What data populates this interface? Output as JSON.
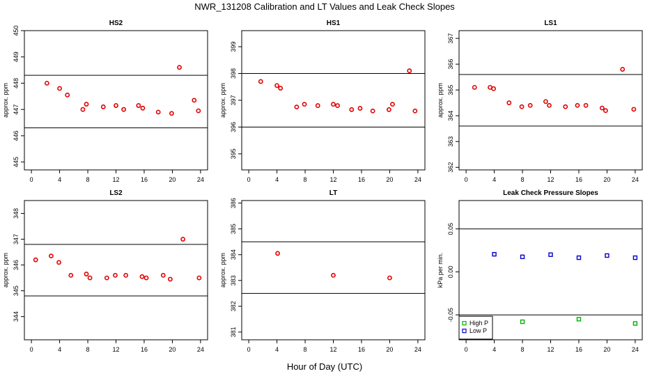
{
  "title": "NWR_131208  Calibration and LT Values and Leak Check Slopes",
  "xlabel": "Hour of Day (UTC)",
  "colors": {
    "point": "#e00000",
    "high_p": "#00b000",
    "low_p": "#0000cc",
    "axis": "#000000"
  },
  "chart_data": [
    {
      "type": "scatter",
      "title": "HS2",
      "ylabel": "approx. ppm",
      "xlim": [
        -1,
        25
      ],
      "xticks": [
        0,
        4,
        8,
        12,
        16,
        20,
        24
      ],
      "ylim": [
        444.7,
        450
      ],
      "yticks": [
        445,
        446,
        447,
        448,
        449,
        450
      ],
      "hlines": [
        448.3,
        446.3
      ],
      "series": [
        {
          "name": "HS2",
          "marker": "circle",
          "color": "#e00000",
          "x": [
            2.2,
            4.0,
            5.1,
            7.3,
            7.8,
            10.2,
            12.0,
            13.1,
            15.2,
            15.8,
            18.0,
            19.9,
            21.0,
            23.1,
            23.7
          ],
          "y": [
            448.0,
            447.8,
            447.55,
            447.0,
            447.2,
            447.1,
            447.15,
            447.0,
            447.15,
            447.05,
            446.9,
            446.85,
            448.6,
            447.35,
            446.95
          ]
        }
      ]
    },
    {
      "type": "scatter",
      "title": "HS1",
      "ylabel": "approx. ppm",
      "xlim": [
        -1,
        25
      ],
      "xticks": [
        0,
        4,
        8,
        12,
        16,
        20,
        24
      ],
      "ylim": [
        394.4,
        399.6
      ],
      "yticks": [
        395,
        396,
        397,
        398,
        399
      ],
      "hlines": [
        398.0,
        396.0
      ],
      "series": [
        {
          "name": "HS1",
          "marker": "circle",
          "color": "#e00000",
          "x": [
            1.7,
            4.0,
            4.5,
            6.8,
            7.9,
            9.8,
            12.0,
            12.6,
            14.6,
            15.8,
            17.6,
            19.9,
            20.4,
            22.8,
            23.6
          ],
          "y": [
            397.7,
            397.55,
            397.45,
            396.75,
            396.85,
            396.8,
            396.85,
            396.8,
            396.65,
            396.7,
            396.6,
            396.65,
            396.85,
            398.1,
            396.6
          ]
        }
      ]
    },
    {
      "type": "scatter",
      "title": "LS1",
      "ylabel": "approx. ppm",
      "xlim": [
        -1,
        25
      ],
      "xticks": [
        0,
        4,
        8,
        12,
        16,
        20,
        24
      ],
      "ylim": [
        361.9,
        367.3
      ],
      "yticks": [
        362,
        363,
        364,
        365,
        366,
        367
      ],
      "hlines": [
        365.6,
        363.6
      ],
      "series": [
        {
          "name": "LS1",
          "marker": "circle",
          "color": "#e00000",
          "x": [
            1.2,
            3.4,
            3.9,
            6.1,
            7.9,
            9.1,
            11.3,
            11.8,
            14.1,
            15.8,
            17.0,
            19.3,
            19.8,
            22.2,
            23.8
          ],
          "y": [
            365.1,
            365.1,
            365.05,
            364.5,
            364.35,
            364.4,
            364.55,
            364.4,
            364.35,
            364.4,
            364.4,
            364.3,
            364.2,
            365.8,
            364.25
          ]
        }
      ]
    },
    {
      "type": "scatter",
      "title": "LS2",
      "ylabel": "approx. ppm",
      "xlim": [
        -1,
        25
      ],
      "xticks": [
        0,
        4,
        8,
        12,
        16,
        20,
        24
      ],
      "ylim": [
        343.1,
        348.5
      ],
      "yticks": [
        344,
        345,
        346,
        347,
        348
      ],
      "hlines": [
        346.8,
        344.8
      ],
      "series": [
        {
          "name": "LS2",
          "marker": "circle",
          "color": "#e00000",
          "x": [
            0.6,
            2.8,
            3.9,
            5.6,
            7.8,
            8.3,
            10.7,
            11.9,
            13.4,
            15.7,
            16.3,
            18.7,
            19.7,
            21.5,
            23.8
          ],
          "y": [
            346.2,
            346.35,
            346.1,
            345.6,
            345.65,
            345.5,
            345.5,
            345.6,
            345.6,
            345.55,
            345.5,
            345.6,
            345.45,
            347.0,
            345.5
          ]
        }
      ]
    },
    {
      "type": "scatter",
      "title": "LT",
      "ylabel": "approx. ppm",
      "xlim": [
        -1,
        25
      ],
      "xticks": [
        0,
        4,
        8,
        12,
        16,
        20,
        24
      ],
      "ylim": [
        380.7,
        386.1
      ],
      "yticks": [
        381,
        382,
        383,
        384,
        385,
        386
      ],
      "hlines": [
        384.5,
        382.5
      ],
      "series": [
        {
          "name": "LT",
          "marker": "circle",
          "color": "#e00000",
          "x": [
            4.1,
            12.0,
            20.0
          ],
          "y": [
            384.05,
            383.2,
            383.1
          ]
        }
      ]
    },
    {
      "type": "scatter",
      "title": "Leak Check Pressure Slopes",
      "ylabel": "kPa per min.",
      "xlim": [
        -1,
        25
      ],
      "xticks": [
        0,
        4,
        8,
        12,
        16,
        20,
        24
      ],
      "ylim": [
        -0.079,
        0.083
      ],
      "yticks": [
        -0.05,
        0.0,
        0.05
      ],
      "ytick_labels": [
        "-0.05",
        "0.00",
        "0.05"
      ],
      "hlines": [
        0.05,
        -0.05
      ],
      "legend": {
        "position": "bottom-left",
        "entries": [
          "High P",
          "Low P"
        ]
      },
      "series": [
        {
          "name": "High P",
          "marker": "square",
          "color": "#00b000",
          "x": [
            8.0,
            16.0,
            24.0
          ],
          "y": [
            -0.058,
            -0.055,
            -0.06
          ]
        },
        {
          "name": "Low P",
          "marker": "square",
          "color": "#0000cc",
          "x": [
            4.0,
            8.0,
            12.0,
            16.0,
            20.0,
            24.0
          ],
          "y": [
            0.0205,
            0.0175,
            0.02,
            0.0165,
            0.019,
            0.0165
          ]
        }
      ]
    }
  ]
}
